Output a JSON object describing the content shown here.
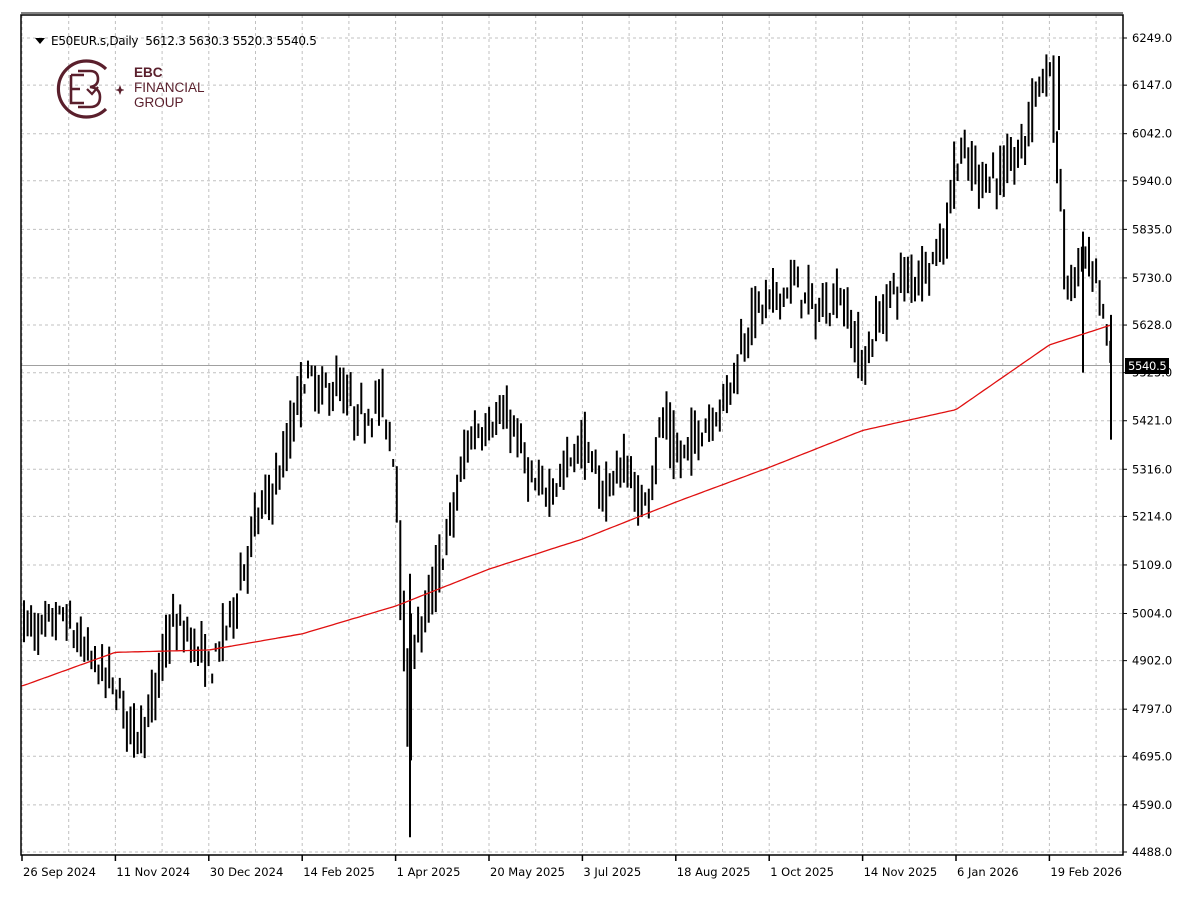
{
  "header": {
    "symbol": "E50EUR.s,Daily",
    "ohlc": "5612.3 5630.3 5520.3 5540.5",
    "open": 5612.3,
    "high": 5630.3,
    "low": 5520.3,
    "close": 5540.5
  },
  "logo": {
    "line1": "EBC",
    "line2": "FINANCIAL",
    "line3": "GROUP",
    "color": "#5a1f2c"
  },
  "last_price_label": "5540.5",
  "colors": {
    "bars": "#000000",
    "ma_line": "#e01010",
    "grid": "#c0c0c0",
    "last_price_line": "#a0a0a0"
  },
  "chart_data": {
    "type": "ohlc",
    "title": "E50EUR.s, Daily",
    "xlabel": "",
    "ylabel": "",
    "ylim": [
      4488.0,
      6249.0
    ],
    "grid": true,
    "y_ticks": [
      "6249.0",
      "6147.0",
      "6042.0",
      "5940.0",
      "5835.0",
      "5730.0",
      "5628.0",
      "5525.0",
      "5421.0",
      "5316.0",
      "5214.0",
      "5109.0",
      "5004.0",
      "4902.0",
      "4797.0",
      "4695.0",
      "4590.0",
      "4488.0"
    ],
    "x_ticks": [
      "26 Sep 2024",
      "11 Nov 2024",
      "30 Dec 2024",
      "14 Feb 2025",
      "1 Apr 2025",
      "20 May 2025",
      "3 Jul 2025",
      "18 Aug 2025",
      "1 Oct 2025",
      "14 Nov 2025",
      "6 Jan 2026",
      "19 Feb 2026"
    ],
    "series": [
      {
        "name": "E50EUR.s price (approx. closes at waypoints)",
        "type": "ohlc",
        "x": [
          "26 Sep 2024",
          "4 Oct 2024",
          "15 Oct 2024",
          "25 Oct 2024",
          "11 Nov 2024",
          "20 Nov 2024",
          "29 Nov 2024",
          "9 Dec 2024",
          "18 Dec 2024",
          "30 Dec 2024",
          "10 Jan 2025",
          "22 Jan 2025",
          "3 Feb 2025",
          "14 Feb 2025",
          "24 Feb 2025",
          "3 Mar 2025",
          "13 Mar 2025",
          "24 Mar 2025",
          "1 Apr 2025",
          "7 Apr 2025",
          "9 Apr 2025",
          "17 Apr 2025",
          "28 Apr 2025",
          "9 May 2025",
          "20 May 2025",
          "30 May 2025",
          "10 Jun 2025",
          "20 Jun 2025",
          "3 Jul 2025",
          "11 Jul 2025",
          "23 Jul 2025",
          "1 Aug 2025",
          "11 Aug 2025",
          "18 Aug 2025",
          "29 Aug 2025",
          "10 Sep 2025",
          "22 Sep 2025",
          "1 Oct 2025",
          "13 Oct 2025",
          "23 Oct 2025",
          "3 Nov 2025",
          "14 Nov 2025",
          "20 Nov 2025",
          "3 Dec 2025",
          "15 Dec 2025",
          "29 Dec 2025",
          "6 Jan 2026",
          "16 Jan 2026",
          "27 Jan 2026",
          "6 Feb 2026",
          "12 Feb 2026",
          "19 Feb 2026",
          "27 Feb 2026",
          "6 Mar 2026",
          "13 Mar 2026",
          "20 Mar 2026"
        ],
        "values": [
          4990,
          4960,
          5000,
          4930,
          4840,
          4740,
          4790,
          4980,
          4960,
          4880,
          5010,
          5210,
          5310,
          5520,
          5480,
          5500,
          5420,
          5470,
          5300,
          4700,
          4940,
          5010,
          5180,
          5390,
          5420,
          5420,
          5260,
          5290,
          5380,
          5260,
          5330,
          5220,
          5430,
          5330,
          5400,
          5470,
          5650,
          5680,
          5720,
          5650,
          5700,
          5530,
          5620,
          5720,
          5740,
          5800,
          6000,
          5950,
          5950,
          6010,
          6150,
          6180,
          5680,
          5780,
          5700,
          5540
        ]
      },
      {
        "name": "Moving average (red)",
        "type": "line",
        "x": [
          "26 Sep 2024",
          "11 Nov 2024",
          "30 Dec 2024",
          "14 Feb 2025",
          "1 Apr 2025",
          "20 May 2025",
          "3 Jul 2025",
          "18 Aug 2025",
          "1 Oct 2025",
          "14 Nov 2025",
          "6 Jan 2026",
          "19 Feb 2026",
          "20 Mar 2026"
        ],
        "values": [
          4847,
          4920,
          4925,
          4960,
          5020,
          5100,
          5165,
          5245,
          5320,
          5400,
          5445,
          5585,
          5628
        ]
      }
    ],
    "last_price": 5540.5
  }
}
